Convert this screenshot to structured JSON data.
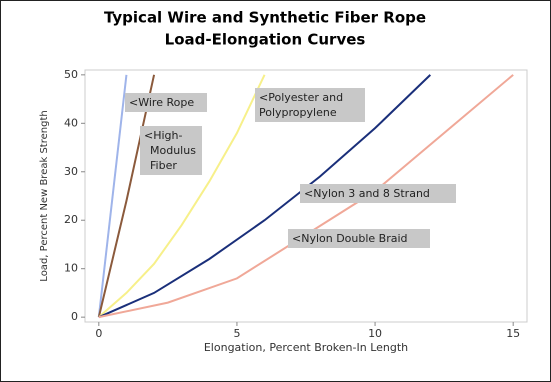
{
  "chart_data": {
    "type": "line",
    "title": [
      "Typical Wire and Synthetic Fiber Rope",
      "Load-Elongation Curves"
    ],
    "x_label": "Elongation, Percent Broken-In Length",
    "y_label": "Load, Percent New Break Strength",
    "xlim": [
      -0.5,
      15.5
    ],
    "ylim": [
      -1,
      51
    ],
    "xticks": [
      0,
      5,
      10,
      15
    ],
    "yticks": [
      0,
      10,
      20,
      30,
      40,
      50
    ],
    "series": [
      {
        "color": "#9fb4ea",
        "x": [
          0,
          1
        ],
        "values": [
          0,
          50
        ]
      },
      {
        "color": "#8b5a3c",
        "x": [
          0,
          1,
          2
        ],
        "values": [
          0,
          24,
          50
        ]
      },
      {
        "color": "#f7f08a",
        "x": [
          0,
          1,
          2,
          3,
          4,
          5,
          6
        ],
        "values": [
          0,
          5,
          11,
          19,
          28,
          38,
          50
        ]
      },
      {
        "color": "#1a2f7a",
        "x": [
          0,
          2,
          4,
          6,
          8,
          10,
          12
        ],
        "values": [
          0,
          5,
          12,
          20,
          29,
          39,
          50
        ]
      },
      {
        "color": "#f0a898",
        "x": [
          0,
          2.5,
          5,
          7.5,
          10,
          12.5,
          15
        ],
        "values": [
          0,
          3,
          8,
          17,
          26,
          38,
          50
        ]
      }
    ],
    "annotations": [
      [
        "<Wire Rope"
      ],
      [
        "<High-",
        "Modulus",
        "Fiber"
      ],
      [
        "<Polyester and",
        "Polypropylene"
      ],
      [
        "<Nylon 3 and 8 Strand"
      ],
      [
        "<Nylon Double Braid"
      ]
    ]
  }
}
